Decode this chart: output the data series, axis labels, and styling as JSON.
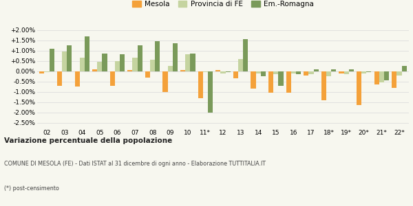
{
  "years": [
    "02",
    "03",
    "04",
    "05",
    "06",
    "07",
    "08",
    "09",
    "10",
    "11*",
    "12",
    "13",
    "14",
    "15",
    "16",
    "17",
    "18*",
    "19*",
    "20*",
    "21*",
    "22*"
  ],
  "mesola": [
    -0.1,
    -0.7,
    -0.75,
    0.1,
    -0.7,
    0.05,
    -0.3,
    -1.0,
    0.05,
    -1.3,
    0.05,
    -0.35,
    -0.85,
    -1.05,
    -1.05,
    -0.2,
    -1.4,
    -0.1,
    -1.65,
    -0.65,
    -0.8
  ],
  "provincia_fe": [
    -0.05,
    0.95,
    0.65,
    0.45,
    0.48,
    0.65,
    0.55,
    0.25,
    0.82,
    -0.05,
    -0.1,
    0.6,
    -0.1,
    -0.15,
    -0.1,
    -0.15,
    -0.25,
    -0.15,
    -0.1,
    -0.55,
    -0.2
  ],
  "emilia_romagna": [
    1.1,
    1.25,
    1.7,
    0.85,
    0.82,
    1.25,
    1.45,
    1.35,
    0.85,
    -2.0,
    -0.05,
    1.55,
    -0.25,
    -0.7,
    -0.15,
    0.08,
    0.1,
    0.1,
    -0.05,
    -0.45,
    0.25
  ],
  "color_mesola": "#f4a13a",
  "color_provincia": "#c5d4a0",
  "color_emilia": "#7a9a5a",
  "background_color": "#f7f7ef",
  "grid_color": "#dddddd",
  "title_bold": "Variazione percentuale della popolazione",
  "subtitle": "COMUNE DI MESOLA (FE) - Dati ISTAT al 31 dicembre di ogni anno - Elaborazione TUTTITALIA.IT",
  "footnote": "(*) post-censimento",
  "ylim_min": -2.75,
  "ylim_max": 2.25,
  "yticks": [
    -2.5,
    -2.0,
    -1.5,
    -1.0,
    -0.5,
    0.0,
    0.5,
    1.0,
    1.5,
    2.0
  ]
}
